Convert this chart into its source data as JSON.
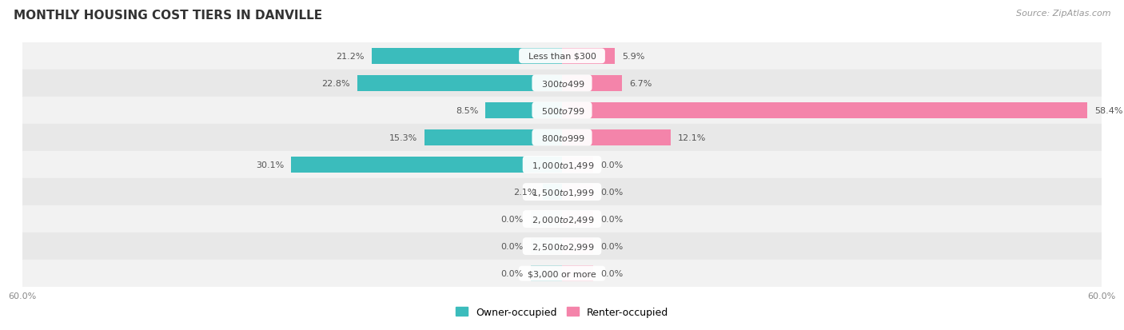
{
  "title": "MONTHLY HOUSING COST TIERS IN DANVILLE",
  "source": "Source: ZipAtlas.com",
  "categories": [
    "Less than $300",
    "$300 to $499",
    "$500 to $799",
    "$800 to $999",
    "$1,000 to $1,499",
    "$1,500 to $1,999",
    "$2,000 to $2,499",
    "$2,500 to $2,999",
    "$3,000 or more"
  ],
  "owner_values": [
    21.2,
    22.8,
    8.5,
    15.3,
    30.1,
    2.1,
    0.0,
    0.0,
    0.0
  ],
  "renter_values": [
    5.9,
    6.7,
    58.4,
    12.1,
    0.0,
    0.0,
    0.0,
    0.0,
    0.0
  ],
  "owner_color": "#3bbcbc",
  "renter_color": "#f484aa",
  "owner_color_light": "#a8d8d8",
  "renter_color_light": "#f5c0d0",
  "row_bg_colors": [
    "#f2f2f2",
    "#e8e8e8"
  ],
  "axis_max": 60.0,
  "stub_size": 3.5,
  "title_fontsize": 11,
  "label_fontsize": 8,
  "value_fontsize": 8,
  "legend_fontsize": 9,
  "source_fontsize": 8
}
